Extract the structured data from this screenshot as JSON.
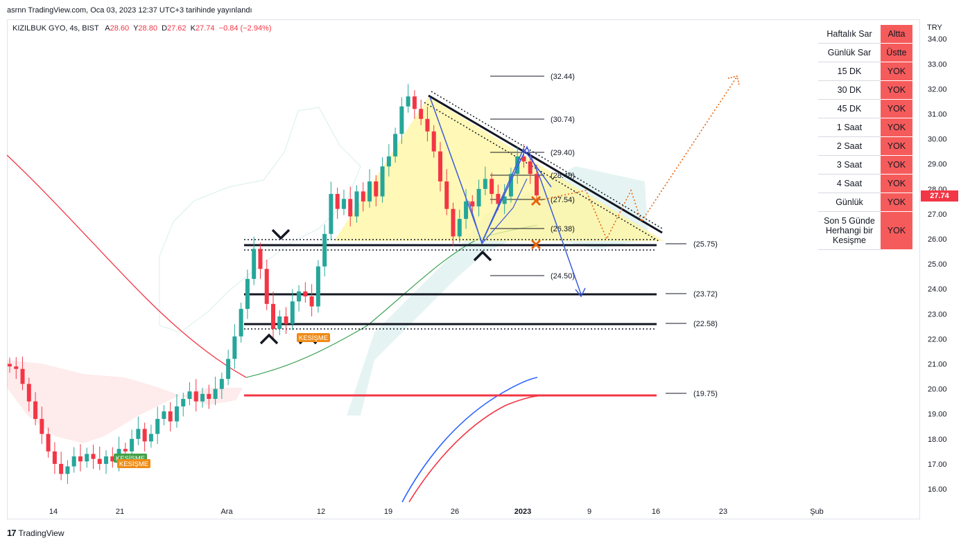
{
  "header": {
    "published": "asrnn TradingView.com, Oca 03, 2023 12:37 UTC+3 tarihinde yayınlandı",
    "symbol": "KIZILBUK GYO, 4s, BIST",
    "open_label": "A",
    "open": "28.60",
    "high_label": "Y",
    "high": "28.80",
    "low_label": "D",
    "low": "27.62",
    "close_label": "K",
    "close": "27.74",
    "change": "−0.84 (−2.94%)"
  },
  "axis": {
    "currency": "TRY",
    "current_price": "27.74",
    "y_ticks": [
      "34.00",
      "33.00",
      "32.00",
      "31.00",
      "30.00",
      "29.00",
      "28.00",
      "27.00",
      "26.00",
      "25.00",
      "24.00",
      "23.00",
      "22.00",
      "21.00",
      "20.00",
      "19.00",
      "18.00",
      "17.00",
      "16.00"
    ],
    "x_ticks": [
      "14",
      "21",
      "Ara",
      "12",
      "19",
      "26",
      "2023",
      "9",
      "16",
      "23",
      "Şub"
    ]
  },
  "levels": [
    {
      "label": "(32.44)",
      "value": 32.44
    },
    {
      "label": "(30.74)",
      "value": 30.74
    },
    {
      "label": "(29.40)",
      "value": 29.4
    },
    {
      "label": "(28.48)",
      "value": 28.48
    },
    {
      "label": "(27.54)",
      "value": 27.54
    },
    {
      "label": "(26.38)",
      "value": 26.38
    },
    {
      "label": "(24.50)",
      "value": 24.5
    },
    {
      "label": "(25.75)",
      "value": 25.75
    },
    {
      "label": "(23.72)",
      "value": 23.72
    },
    {
      "label": "(22.58)",
      "value": 22.58
    },
    {
      "label": "(19.75)",
      "value": 19.75
    }
  ],
  "signals": [
    "KESİŞME",
    "KESİŞME",
    "KESİŞME"
  ],
  "status_table": [
    {
      "label": "Haftalık Sar",
      "value": "Altta"
    },
    {
      "label": "Günlük Sar",
      "value": "Üstte"
    },
    {
      "label": "15 DK",
      "value": "YOK"
    },
    {
      "label": "30 DK",
      "value": "YOK"
    },
    {
      "label": "45 DK",
      "value": "YOK"
    },
    {
      "label": "1 Saat",
      "value": "YOK"
    },
    {
      "label": "2 Saat",
      "value": "YOK"
    },
    {
      "label": "3 Saat",
      "value": "YOK"
    },
    {
      "label": "4 Saat",
      "value": "YOK"
    },
    {
      "label": "Günlük",
      "value": "YOK"
    },
    {
      "label": "Son 5 Günde Herhangi bir Kesişme",
      "value": "YOK"
    }
  ],
  "footer": {
    "brand": "TradingView"
  },
  "colors": {
    "up": "#26a69a",
    "down": "#f23645",
    "triangle": "#fff59d",
    "red_level": "#f23645",
    "blue_path": "#3b5bdb",
    "orange": "#e8630a"
  },
  "chart_data": {
    "type": "candlestick",
    "ylim": [
      15.6,
      34.3
    ],
    "series": [
      {
        "name": "close",
        "values": [
          20.9,
          20.8,
          20.2,
          19.5,
          18.8,
          18.2,
          17.5,
          17.0,
          16.6,
          16.9,
          17.3,
          17.1,
          17.4,
          17.2,
          17.0,
          17.3,
          17.1,
          17.6,
          17.5,
          18.0,
          18.4,
          17.9,
          18.2,
          18.8,
          19.1,
          18.7,
          19.3,
          19.6,
          19.9,
          19.5,
          19.8,
          19.6,
          20.0,
          20.4,
          21.2,
          22.1,
          23.2,
          24.4,
          25.6,
          24.8,
          23.4,
          22.4,
          22.9,
          22.6,
          23.5,
          23.9,
          23.7,
          23.3,
          24.9,
          26.2,
          27.8,
          27.2,
          27.6,
          26.9,
          27.9,
          27.5,
          28.3,
          27.7,
          28.9,
          29.3,
          30.2,
          31.3,
          31.7,
          31.2,
          30.8,
          30.3,
          29.5,
          28.3,
          27.2,
          26.1,
          26.8,
          27.5,
          27.3,
          28.0,
          28.4,
          27.8,
          27.4,
          27.7,
          28.6,
          29.3,
          29.1,
          28.6,
          27.74
        ]
      }
    ]
  }
}
